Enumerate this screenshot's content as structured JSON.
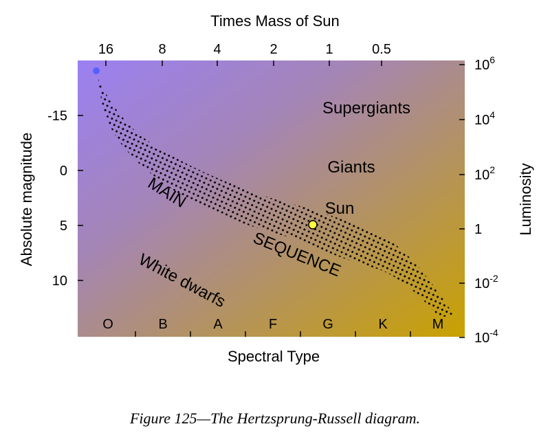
{
  "diagram": {
    "top_axis_title": "Times Mass of Sun",
    "mass_labels": [
      "16",
      "8",
      "4",
      "2",
      "1",
      "0.5"
    ],
    "left_axis_title": "Absolute magnitude",
    "magnitude_labels": [
      "-15",
      "0",
      "5",
      "10"
    ],
    "right_axis_title": "Luminosity",
    "luminosity_labels": [
      {
        "base": "10",
        "exp": "6"
      },
      {
        "base": "10",
        "exp": "4"
      },
      {
        "base": "10",
        "exp": "2"
      },
      {
        "base": "1",
        "exp": ""
      },
      {
        "base": "10",
        "exp": "-2"
      },
      {
        "base": "10",
        "exp": "-4"
      }
    ],
    "bottom_axis_title": "Spectral Type",
    "spectral_types": [
      "O",
      "B",
      "A",
      "F",
      "G",
      "K",
      "M"
    ],
    "regions": {
      "supergiants": "Supergiants",
      "giants": "Giants",
      "sun": "Sun",
      "main": "MAIN",
      "sequence": "SEQUENCE",
      "white_dwarfs": "White dwarfs"
    },
    "caption": "Figure 125—The Hertzsprung-Russell diagram."
  }
}
